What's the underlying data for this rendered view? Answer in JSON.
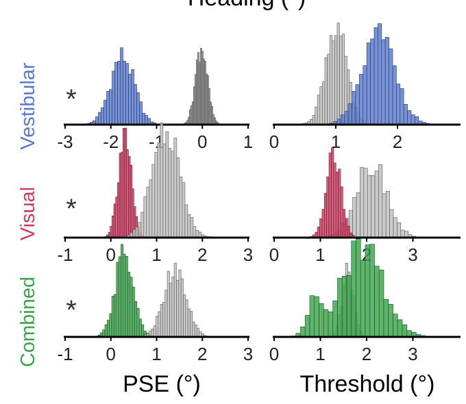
{
  "title": "Heading (°)",
  "colors": {
    "Vestibular": "#5a7ad0",
    "Visual": "#d03a60",
    "Combined": "#3aa44a",
    "reference": "#c0c0c0",
    "reference_dark": "#8c8c8c"
  },
  "row_labels": [
    "Vestibular",
    "Visual",
    "Combined"
  ],
  "significance_marker": "*",
  "x_axis_labels": {
    "pse": "PSE (°)",
    "threshold": "Threshold (°)"
  },
  "chart_data": [
    {
      "type": "histogram",
      "row": "Vestibular",
      "column": "PSE",
      "xlim": [
        -3,
        1
      ],
      "xticks": [
        "-3",
        "-2",
        "-1",
        "0",
        "1"
      ],
      "xlabel": "",
      "significance": "*",
      "series": [
        {
          "name": "Vestibular",
          "color": "Vestibular",
          "mean": -1.75,
          "sd": 0.26,
          "bin": 0.06,
          "peak": 1.0
        },
        {
          "name": "",
          "color": "reference_dark",
          "mean": -0.02,
          "sd": 0.13,
          "bin": 0.03,
          "peak": 1.15
        }
      ]
    },
    {
      "type": "histogram",
      "row": "Vestibular",
      "column": "Threshold",
      "xlim": [
        0,
        3
      ],
      "xticks": [
        "0",
        "1",
        "2"
      ],
      "xlabel": "",
      "series": [
        {
          "name": "",
          "color": "reference",
          "mean": 1.0,
          "sd": 0.17,
          "bin": 0.04,
          "peak": 1.45
        },
        {
          "name": "Vestibular",
          "color": "Vestibular",
          "mean": 1.7,
          "sd": 0.27,
          "bin": 0.06,
          "peak": 1.3
        }
      ]
    },
    {
      "type": "histogram",
      "row": "Visual",
      "column": "PSE",
      "xlim": [
        -1,
        3
      ],
      "xticks": [
        "-1",
        "0",
        "1",
        "2",
        "3"
      ],
      "xlabel": "",
      "significance": "*",
      "series": [
        {
          "name": "Visual",
          "color": "Visual",
          "mean": 0.3,
          "sd": 0.14,
          "bin": 0.04,
          "peak": 1.55
        },
        {
          "name": "",
          "color": "reference",
          "mean": 1.2,
          "sd": 0.3,
          "bin": 0.06,
          "peak": 1.6
        }
      ]
    },
    {
      "type": "histogram",
      "row": "Visual",
      "column": "Threshold",
      "xlim": [
        0,
        4
      ],
      "xticks": [
        "0",
        "1",
        "2",
        "3"
      ],
      "xlabel": "",
      "series": [
        {
          "name": "",
          "color": "reference",
          "mean": 2.1,
          "sd": 0.33,
          "bin": 0.08,
          "peak": 1.1
        },
        {
          "name": "Visual",
          "color": "Visual",
          "mean": 1.28,
          "sd": 0.16,
          "bin": 0.05,
          "peak": 1.25
        }
      ]
    },
    {
      "type": "histogram",
      "row": "Combined",
      "column": "PSE",
      "xlim": [
        -1,
        3
      ],
      "xticks": [
        "-1",
        "0",
        "1",
        "2",
        "3"
      ],
      "xlabel": "PSE (°)",
      "significance": "*",
      "series": [
        {
          "name": "Combined",
          "color": "Combined",
          "mean": 0.3,
          "sd": 0.2,
          "bin": 0.05,
          "peak": 1.25
        },
        {
          "name": "",
          "color": "reference",
          "mean": 1.4,
          "sd": 0.24,
          "bin": 0.05,
          "peak": 1.0
        }
      ]
    },
    {
      "type": "histogram",
      "row": "Combined",
      "column": "Threshold",
      "xlim": [
        0,
        4
      ],
      "xticks": [
        "0",
        "1",
        "2",
        "3"
      ],
      "xlabel": "Threshold (°)",
      "series": [
        {
          "name": "",
          "color": "reference",
          "mean": 1.6,
          "sd": 0.12,
          "bin": 0.05,
          "peak": 0.95
        },
        {
          "name": "Combined",
          "color": "Combined",
          "mean": 1.9,
          "sd": 0.45,
          "bin": 0.1,
          "peak": 1.3,
          "secondary_mode": 0.85
        }
      ]
    }
  ]
}
